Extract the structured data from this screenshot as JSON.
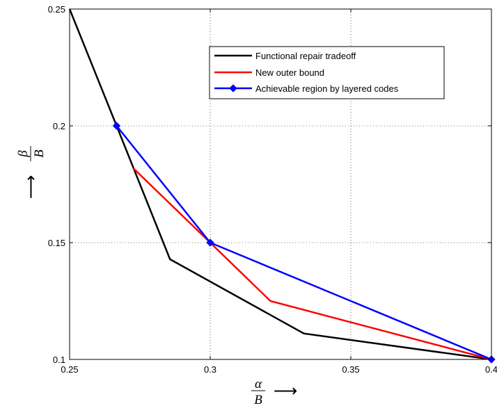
{
  "chart_data": {
    "type": "line",
    "title": "",
    "xlim": [
      0.25,
      0.4
    ],
    "ylim": [
      0.1,
      0.25
    ],
    "xticks": [
      0.25,
      0.3,
      0.35,
      0.4
    ],
    "yticks": [
      0.1,
      0.15,
      0.2,
      0.25
    ],
    "xtick_labels": [
      "0.25",
      "0.3",
      "0.35",
      "0.4"
    ],
    "ytick_labels": [
      "0.1",
      "0.15",
      "0.2",
      "0.25"
    ],
    "xlabel": {
      "numerator": "α",
      "denominator": "B",
      "arrow": "⟶"
    },
    "ylabel": {
      "numerator": "β",
      "denominator": "B",
      "arrow": "⟶"
    },
    "grid": true,
    "legend_position": "top-right",
    "series": [
      {
        "name": "Functional repair tradeoff",
        "color": "#000000",
        "marker": "none",
        "x": [
          0.25,
          0.2667,
          0.2857,
          0.3333,
          0.4
        ],
        "y": [
          0.25,
          0.2,
          0.1429,
          0.1111,
          0.1
        ]
      },
      {
        "name": "New outer bound",
        "color": "#ff0000",
        "marker": "none",
        "x": [
          0.2727,
          0.3,
          0.3214,
          0.4
        ],
        "y": [
          0.1818,
          0.15,
          0.125,
          0.1
        ]
      },
      {
        "name": "Achievable region by layered codes",
        "color": "#0000ff",
        "marker": "diamond",
        "x": [
          0.2667,
          0.3,
          0.4
        ],
        "y": [
          0.2,
          0.15,
          0.1
        ]
      }
    ]
  }
}
